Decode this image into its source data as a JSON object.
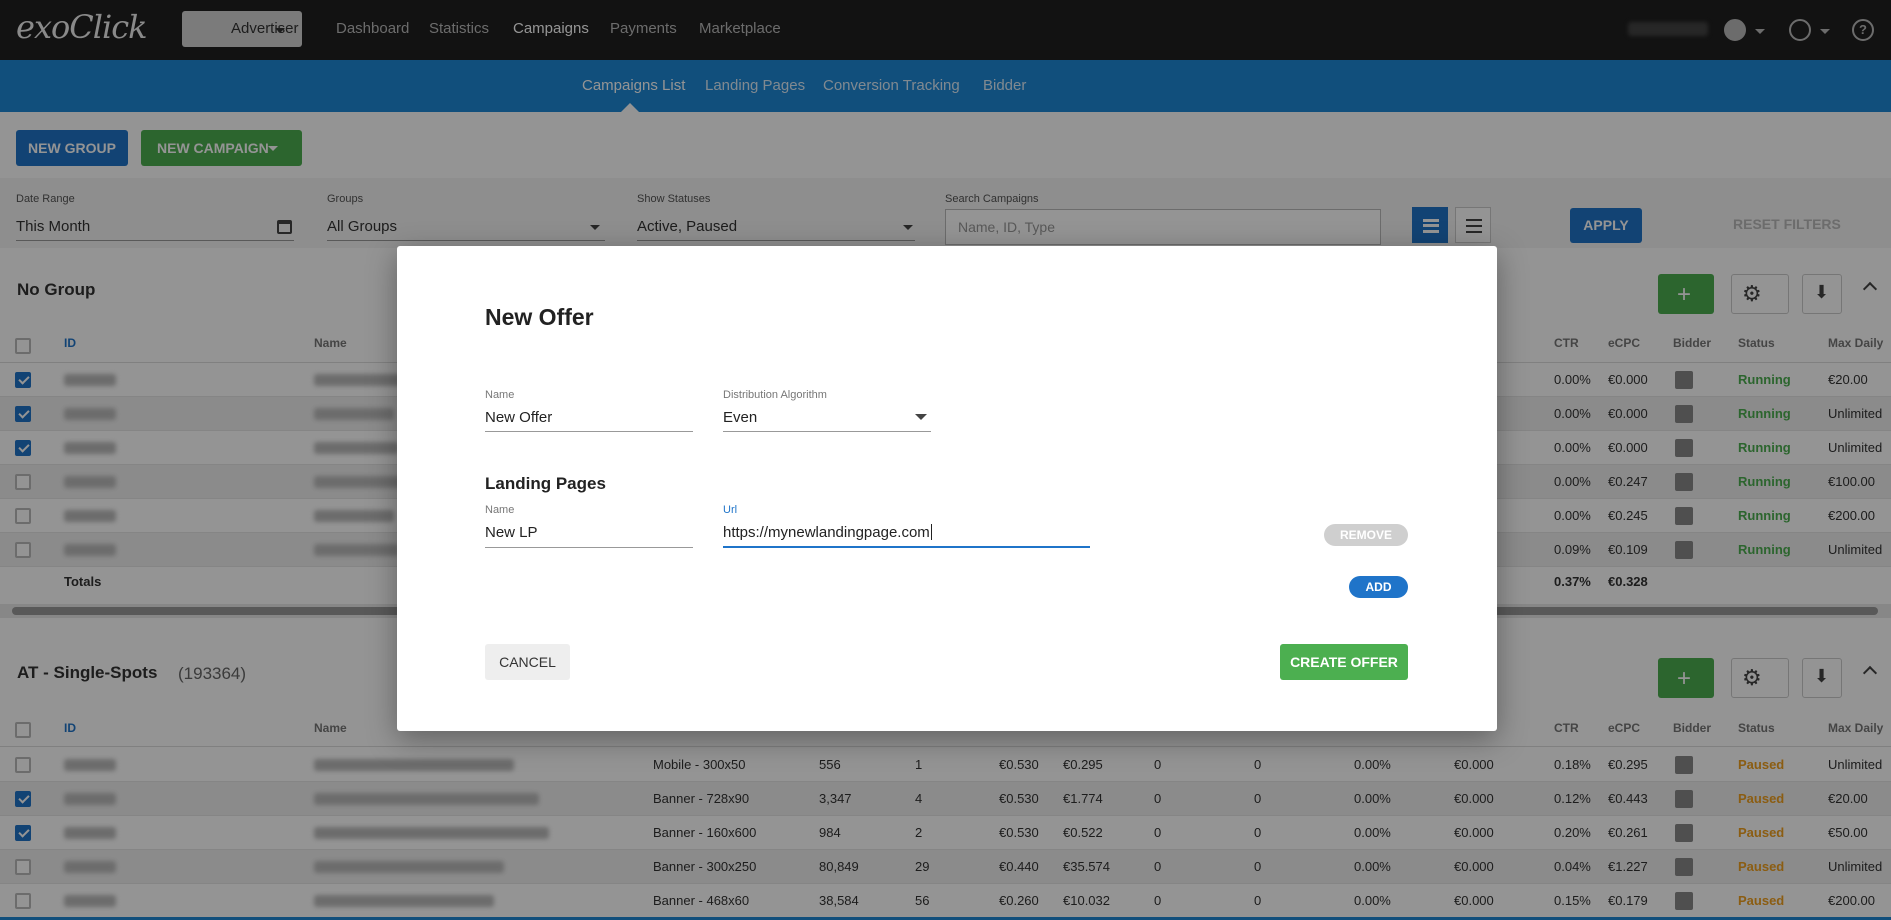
{
  "app": {
    "logo": "exoClick"
  },
  "topnav": {
    "role": "Advertiser",
    "items": [
      "Dashboard",
      "Statistics",
      "Campaigns",
      "Payments",
      "Marketplace"
    ],
    "active": "Campaigns"
  },
  "subnav": {
    "items": [
      "Campaigns List",
      "Landing Pages",
      "Conversion Tracking",
      "Bidder"
    ],
    "active": "Campaigns List"
  },
  "toolbar": {
    "new_group": "NEW GROUP",
    "new_campaign": "NEW CAMPAIGN"
  },
  "filters": {
    "date_range_label": "Date Range",
    "date_range_value": "This Month",
    "groups_label": "Groups",
    "groups_value": "All Groups",
    "statuses_label": "Show Statuses",
    "statuses_value": "Active, Paused",
    "search_label": "Search Campaigns",
    "search_placeholder": "Name, ID, Type",
    "apply": "APPLY",
    "reset": "RESET FILTERS"
  },
  "group1": {
    "title": "No Group",
    "headers": {
      "id": "ID",
      "name": "Name",
      "ctr": "CTR",
      "ecpc": "eCPC",
      "bidder": "Bidder",
      "status": "Status",
      "max_daily": "Max Daily"
    },
    "rows": [
      {
        "checked": true,
        "ctr": "0.00%",
        "ecpc": "€0.000",
        "status": "Running",
        "max": "€20.00"
      },
      {
        "checked": true,
        "ctr": "0.00%",
        "ecpc": "€0.000",
        "status": "Running",
        "max": "Unlimited"
      },
      {
        "checked": true,
        "ctr": "0.00%",
        "ecpc": "€0.000",
        "status": "Running",
        "max": "Unlimited"
      },
      {
        "checked": false,
        "ctr": "0.00%",
        "ecpc": "€0.247",
        "status": "Running",
        "max": "€100.00"
      },
      {
        "checked": false,
        "ctr": "0.00%",
        "ecpc": "€0.245",
        "status": "Running",
        "max": "€200.00"
      },
      {
        "checked": false,
        "ctr": "0.09%",
        "ecpc": "€0.109",
        "status": "Running",
        "max": "Unlimited"
      }
    ],
    "totals": {
      "label": "Totals",
      "ctr": "0.37%",
      "ecpc": "€0.328"
    }
  },
  "group2": {
    "title": "AT - Single-Spots",
    "count": "(193364)",
    "headers": {
      "id": "ID",
      "name": "Name",
      "ctr": "CTR",
      "ecpc": "eCPC",
      "bidder": "Bidder",
      "status": "Status",
      "max_daily": "Max Daily"
    },
    "rows": [
      {
        "checked": false,
        "type": "Mobile - 300x50",
        "impressions": "556",
        "clicks": "1",
        "cpm": "€0.530",
        "cost": "€0.295",
        "c1": "0",
        "c2": "0",
        "rate": "0.00%",
        "cpa": "€0.000",
        "ctr": "0.18%",
        "ecpc": "€0.295",
        "status": "Paused",
        "max": "Unlimited"
      },
      {
        "checked": true,
        "type": "Banner - 728x90",
        "impressions": "3,347",
        "clicks": "4",
        "cpm": "€0.530",
        "cost": "€1.774",
        "c1": "0",
        "c2": "0",
        "rate": "0.00%",
        "cpa": "€0.000",
        "ctr": "0.12%",
        "ecpc": "€0.443",
        "status": "Paused",
        "max": "€20.00"
      },
      {
        "checked": true,
        "type": "Banner - 160x600",
        "impressions": "984",
        "clicks": "2",
        "cpm": "€0.530",
        "cost": "€0.522",
        "c1": "0",
        "c2": "0",
        "rate": "0.00%",
        "cpa": "€0.000",
        "ctr": "0.20%",
        "ecpc": "€0.261",
        "status": "Paused",
        "max": "€50.00"
      },
      {
        "checked": false,
        "type": "Banner - 300x250",
        "impressions": "80,849",
        "clicks": "29",
        "cpm": "€0.440",
        "cost": "€35.574",
        "c1": "0",
        "c2": "0",
        "rate": "0.00%",
        "cpa": "€0.000",
        "ctr": "0.04%",
        "ecpc": "€1.227",
        "status": "Paused",
        "max": "Unlimited"
      },
      {
        "checked": false,
        "type": "Banner - 468x60",
        "impressions": "38,584",
        "clicks": "56",
        "cpm": "€0.260",
        "cost": "€10.032",
        "c1": "0",
        "c2": "0",
        "rate": "0.00%",
        "cpa": "€0.000",
        "ctr": "0.15%",
        "ecpc": "€0.179",
        "status": "Paused",
        "max": "€200.00"
      }
    ]
  },
  "modal": {
    "title": "New Offer",
    "name_label": "Name",
    "name_value": "New Offer",
    "algo_label": "Distribution Algorithm",
    "algo_value": "Even",
    "lp_section": "Landing Pages",
    "lp_name_label": "Name",
    "lp_name_value": "New LP",
    "lp_url_label": "Url",
    "lp_url_value": "https://mynewlandingpage.com",
    "remove": "REMOVE",
    "add": "ADD",
    "cancel": "CANCEL",
    "create": "CREATE OFFER"
  },
  "colors": {
    "accent": "#1f74c9",
    "success": "#4caf50",
    "paused": "#f0a020",
    "topbar": "#1f1f1f"
  }
}
